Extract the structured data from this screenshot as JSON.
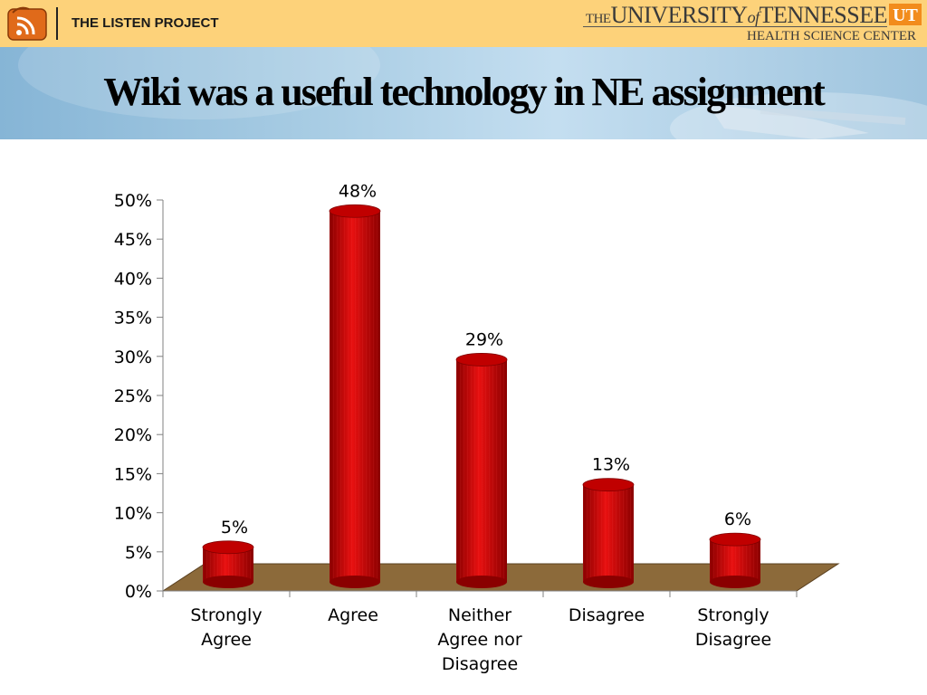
{
  "header": {
    "project_title": "THE LISTEN PROJECT",
    "university_line1_prefix": "THE",
    "university_line1_main": "UNIVERSITY",
    "university_line1_of": "of",
    "university_line1_state": "TENNESSEE",
    "university_line2": "HEALTH SCIENCE CENTER",
    "ut_mark": "UT"
  },
  "colors": {
    "topbar": "#fdd27a",
    "bar_main": "#cc0000",
    "bar_dark": "#8a0000",
    "floor": "#8c6a3a"
  },
  "chart_data": {
    "type": "bar",
    "title": "Wiki was a useful technology in NE assignment",
    "categories": [
      "Strongly\nAgree",
      "Agree",
      "Neither\nAgree nor\nDisagree",
      "Disagree",
      "Strongly\nDisagree"
    ],
    "values": [
      5,
      48,
      29,
      13,
      6
    ],
    "data_labels": [
      "5%",
      "48%",
      "29%",
      "13%",
      "6%"
    ],
    "ylim": [
      0,
      50
    ],
    "yticks": [
      0,
      5,
      10,
      15,
      20,
      25,
      30,
      35,
      40,
      45,
      50
    ],
    "ytick_labels": [
      "0%",
      "5%",
      "10%",
      "15%",
      "20%",
      "25%",
      "30%",
      "35%",
      "40%",
      "45%",
      "50%"
    ],
    "xlabel": "",
    "ylabel": "",
    "style": "3d-cylinder",
    "grid": false,
    "legend": "none"
  }
}
